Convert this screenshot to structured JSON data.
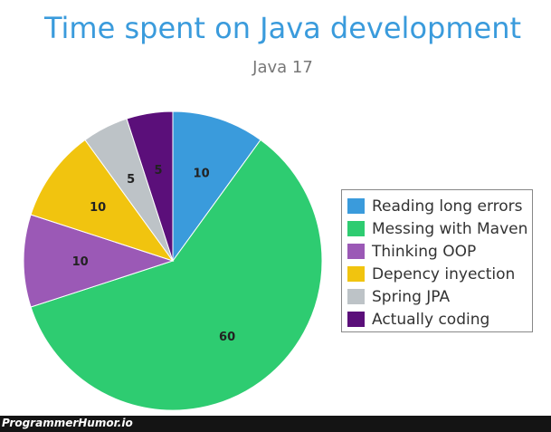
{
  "chart_data": {
    "type": "pie",
    "title": "Time spent on Java development",
    "subtitle": "Java 17",
    "slices": [
      {
        "label": "Reading long errors",
        "value": 10,
        "color": "#3a9bdc"
      },
      {
        "label": "Messing with Maven",
        "value": 60,
        "color": "#2ecc71"
      },
      {
        "label": "Thinking OOP",
        "value": 10,
        "color": "#9b59b6"
      },
      {
        "label": "Depency inyection",
        "value": 10,
        "color": "#f1c40f"
      },
      {
        "label": "Spring JPA",
        "value": 5,
        "color": "#bdc3c7"
      },
      {
        "label": "Actually coding",
        "value": 5,
        "color": "#5b0f7a"
      }
    ],
    "legend_position": "right"
  },
  "watermark": "ProgrammerHumor.io"
}
